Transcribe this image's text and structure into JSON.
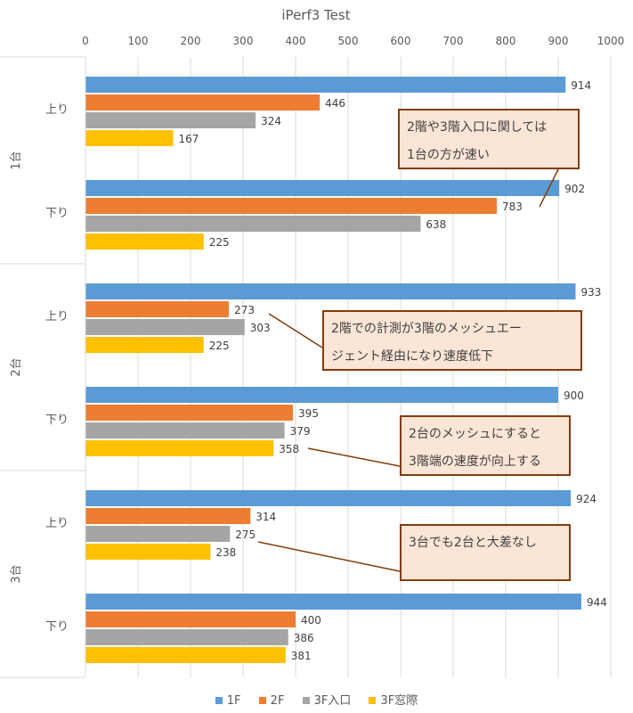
{
  "chart_data": {
    "type": "bar",
    "orientation": "horizontal",
    "title": "iPerf3 Test",
    "xlim": [
      0,
      1000
    ],
    "xticks": [
      0,
      100,
      200,
      300,
      400,
      500,
      600,
      700,
      800,
      900,
      1000
    ],
    "axis_position": "top",
    "grid": true,
    "legend_position": "bottom",
    "groups": [
      {
        "label": "1台",
        "categories": [
          "上り",
          "下り"
        ]
      },
      {
        "label": "2台",
        "categories": [
          "上り",
          "下り"
        ]
      },
      {
        "label": "3台",
        "categories": [
          "上り",
          "下り"
        ]
      }
    ],
    "series": [
      {
        "name": "1F",
        "color": "#5b9bd5",
        "values": [
          914,
          902,
          933,
          900,
          924,
          944
        ]
      },
      {
        "name": "2F",
        "color": "#ed7d31",
        "values": [
          446,
          783,
          273,
          395,
          314,
          400
        ]
      },
      {
        "name": "3F入口",
        "color": "#a5a5a5",
        "values": [
          324,
          638,
          303,
          379,
          275,
          386
        ]
      },
      {
        "name": "3F窓際",
        "color": "#ffc000",
        "values": [
          167,
          225,
          225,
          358,
          238,
          381
        ]
      }
    ],
    "annotations": [
      {
        "line1": "2階や3階入口に関しては",
        "line2": "1台の方が速い"
      },
      {
        "line1": "2階での計測が3階のメッシュエー",
        "line2": "ジェント経由になり速度低下"
      },
      {
        "line1": "2台のメッシュにすると",
        "line2": "3階端の速度が向上する"
      },
      {
        "line1": "3台でも2台と大差なし",
        "line2": ""
      }
    ]
  }
}
